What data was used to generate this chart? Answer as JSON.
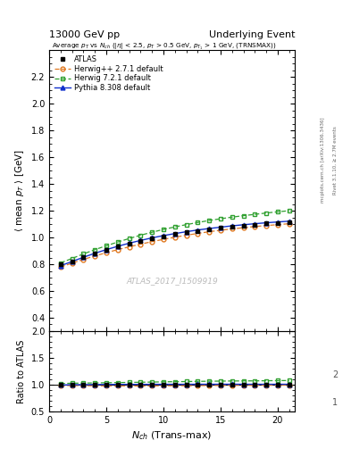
{
  "title_left": "13000 GeV pp",
  "title_right": "Underlying Event",
  "plot_title": "Average $p_T$ vs $N_{ch}$ ($|\\eta|$ < 2.5, $p_T$ > 0.5 GeV, $p_{T_1}$ > 1 GeV, (TRNSMAX))",
  "ylabel_main": "$\\langle$ mean $p_T$ $\\rangle$ [GeV]",
  "ylabel_ratio": "Ratio to ATLAS",
  "xlabel": "$N_{ch}$ (Trans-max)",
  "watermark": "ATLAS_2017_I1509919",
  "right_label1": "Rivet 3.1.10, ≥ 2.7M events",
  "right_label2": "mcplots.cern.ch [arXiv:1306.3436]",
  "ylim_main": [
    0.3,
    2.4
  ],
  "ylim_ratio": [
    0.5,
    2.0
  ],
  "yticks_main": [
    0.4,
    0.6,
    0.8,
    1.0,
    1.2,
    1.4,
    1.6,
    1.8,
    2.0,
    2.2
  ],
  "yticks_ratio": [
    0.5,
    1.0,
    1.5,
    2.0
  ],
  "xlim": [
    0,
    21.5
  ],
  "xticks": [
    0,
    5,
    10,
    15,
    20
  ],
  "atlas_x": [
    1,
    2,
    3,
    4,
    5,
    6,
    7,
    8,
    9,
    10,
    11,
    12,
    13,
    14,
    15,
    16,
    17,
    18,
    19,
    20,
    21
  ],
  "atlas_y": [
    0.797,
    0.822,
    0.854,
    0.882,
    0.908,
    0.932,
    0.954,
    0.975,
    0.993,
    1.009,
    1.024,
    1.038,
    1.05,
    1.061,
    1.071,
    1.08,
    1.089,
    1.097,
    1.104,
    1.11,
    1.116
  ],
  "herwig_pp_x": [
    1,
    2,
    3,
    4,
    5,
    6,
    7,
    8,
    9,
    10,
    11,
    12,
    13,
    14,
    15,
    16,
    17,
    18,
    19,
    20,
    21
  ],
  "herwig_pp_y": [
    0.779,
    0.808,
    0.836,
    0.862,
    0.886,
    0.909,
    0.93,
    0.95,
    0.969,
    0.986,
    1.002,
    1.017,
    1.03,
    1.043,
    1.054,
    1.064,
    1.073,
    1.082,
    1.089,
    1.096,
    1.103
  ],
  "herwig72_x": [
    1,
    2,
    3,
    4,
    5,
    6,
    7,
    8,
    9,
    10,
    11,
    12,
    13,
    14,
    15,
    16,
    17,
    18,
    19,
    20,
    21
  ],
  "herwig72_y": [
    0.81,
    0.843,
    0.877,
    0.909,
    0.938,
    0.966,
    0.992,
    1.017,
    1.039,
    1.06,
    1.079,
    1.096,
    1.112,
    1.127,
    1.14,
    1.152,
    1.163,
    1.173,
    1.183,
    1.192,
    1.2
  ],
  "pythia_x": [
    1,
    2,
    3,
    4,
    5,
    6,
    7,
    8,
    9,
    10,
    11,
    12,
    13,
    14,
    15,
    16,
    17,
    18,
    19,
    20,
    21
  ],
  "pythia_y": [
    0.789,
    0.82,
    0.852,
    0.882,
    0.909,
    0.934,
    0.957,
    0.978,
    0.997,
    1.014,
    1.029,
    1.043,
    1.056,
    1.067,
    1.077,
    1.087,
    1.095,
    1.103,
    1.11,
    1.116,
    1.122
  ],
  "atlas_color": "#000000",
  "herwig_pp_color": "#e07820",
  "herwig72_color": "#30a030",
  "pythia_color": "#1030cc",
  "bg_color": "#ffffff",
  "panel_ratio": [
    3.5,
    1
  ],
  "legend_labels": [
    "ATLAS",
    "Herwig++ 2.7.1 default",
    "Herwig 7.2.1 default",
    "Pythia 8.308 default"
  ]
}
